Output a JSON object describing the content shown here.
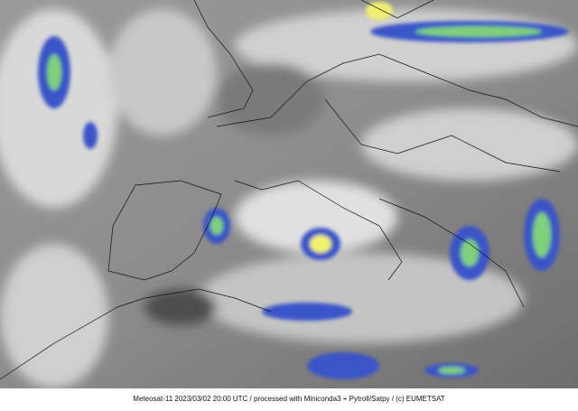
{
  "image": {
    "description_kind": "satellite infrared composite over Europe with country borders",
    "caption": "Meteosat-11 2023/03/02 20:00 UTC / processed with Miniconda3 + Pytroll/Satpy / (c) EUMETSAT",
    "colors": {
      "cloud_cold_blue": "#3a55c8",
      "cloud_green": "#7fd07a",
      "cloud_yellow": "#f0f070",
      "land_gray": "#8a8a8a",
      "sea_dark": "#5a5a5a",
      "border": "#111111"
    }
  }
}
